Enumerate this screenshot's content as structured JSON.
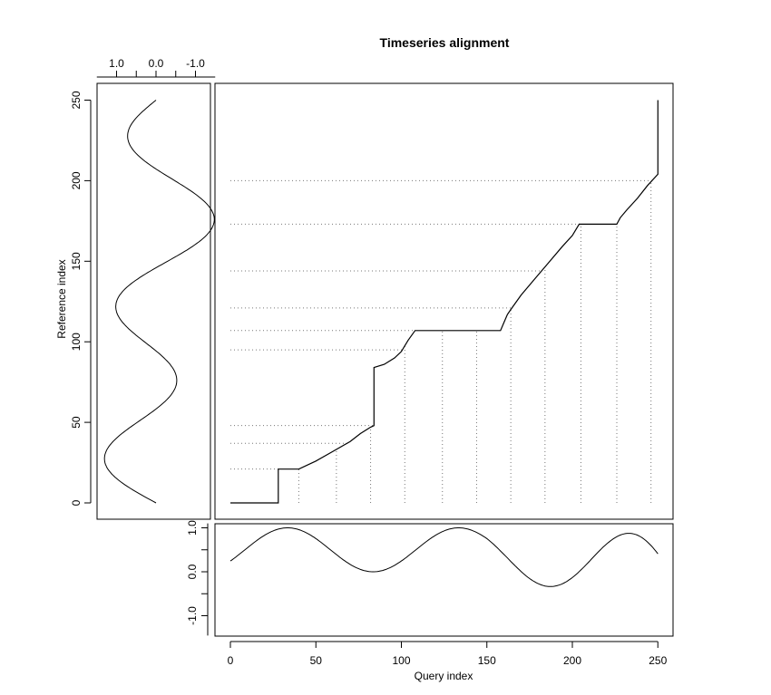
{
  "chart_data": {
    "type": "line",
    "title": "Timeseries alignment",
    "xlabel": "Query index",
    "ylabel": "Reference index",
    "main_panel": {
      "xlim": [
        0,
        250
      ],
      "ylim": [
        0,
        250
      ],
      "alignment_path": {
        "x": [
          0,
          28,
          28,
          40,
          50,
          60,
          70,
          76,
          82,
          84,
          84,
          90,
          96,
          100,
          104,
          108,
          116,
          124,
          134,
          144,
          152,
          158,
          160,
          162,
          164,
          170,
          178,
          186,
          194,
          200,
          204,
          206,
          214,
          220,
          226,
          228,
          232,
          238,
          244,
          250,
          250
        ],
        "y": [
          0,
          0,
          21,
          21,
          26,
          32,
          38,
          43,
          47,
          48,
          84,
          86,
          90,
          94,
          101,
          107,
          107,
          107,
          107,
          107,
          107,
          107,
          112,
          117,
          120,
          129,
          139,
          149,
          159,
          166,
          173,
          173,
          173,
          173,
          173,
          177,
          182,
          189,
          197,
          204,
          250
        ]
      },
      "guide_lines_x": [
        40,
        62,
        82,
        102,
        124,
        144,
        164,
        184,
        205,
        226,
        246
      ],
      "guide_lines_y": [
        21,
        37,
        48,
        95,
        107,
        121,
        144,
        173,
        200
      ]
    },
    "reference_panel": {
      "ylim": [
        0,
        250
      ],
      "value_axis": [
        1.5,
        -1.5
      ],
      "value_ticks": [
        "1.0",
        "0.0",
        "-1.0"
      ]
    },
    "query_panel": {
      "xlim": [
        0,
        250
      ],
      "value_axis": [
        -1.45,
        1.1
      ],
      "value_ticks": [
        "1.0",
        "0.0",
        "-1.0"
      ]
    },
    "x_ticks": [
      "0",
      "50",
      "100",
      "150",
      "200",
      "250"
    ],
    "y_ticks": [
      "0",
      "50",
      "100",
      "150",
      "200",
      "250"
    ]
  }
}
